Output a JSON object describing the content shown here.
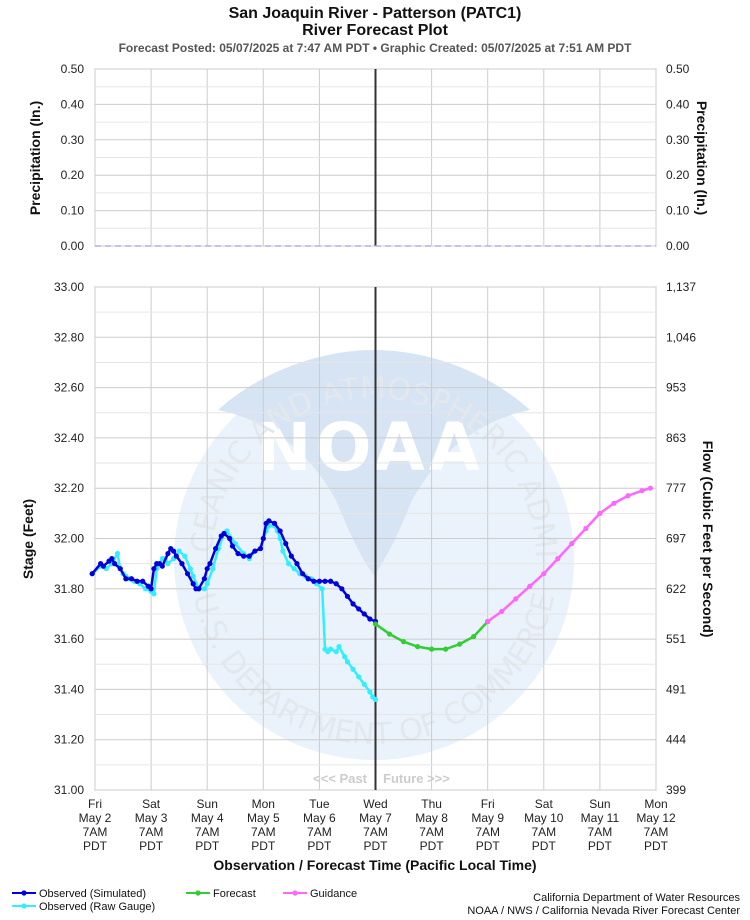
{
  "header": {
    "title_line1": "San Joaquin River - Patterson (PATC1)",
    "title_line2": "River Forecast Plot",
    "subtitle": "Forecast Posted: 05/07/2025 at 7:47 AM PDT  •  Graphic Created: 05/07/2025 at 7:51 AM PDT"
  },
  "watermark": {
    "logo_text": "NOAA",
    "ring_top": "NATIONAL OCEANIC AND ATMOSPHERIC ADMINISTRATION",
    "ring_bottom": "U.S. DEPARTMENT OF COMMERCE",
    "colors": {
      "disc": "#eaf2fb",
      "band": "#d6e4f4",
      "letters": "#ffffff"
    }
  },
  "past_future": {
    "past": "<<< Past",
    "future": "Future >>>"
  },
  "chart_data": [
    {
      "id": "precipitation",
      "type": "line",
      "ylabel_left": "Precipitation (In.)",
      "ylabel_right": "Precipitation (In.)",
      "ylim": [
        0,
        0.5
      ],
      "yticks": [
        "0.50",
        "0.40",
        "0.30",
        "0.20",
        "0.10",
        "0.00"
      ],
      "yticks_right": [
        "0.50",
        "0.40",
        "0.30",
        "0.20",
        "0.10",
        "0.00"
      ],
      "series": [
        {
          "values_note": "",
          "color": "#b0b0f0",
          "x": [
            0,
            10
          ],
          "y": [
            0,
            0
          ],
          "style": "dashed"
        }
      ],
      "grid": true
    },
    {
      "id": "stage",
      "type": "line",
      "ylabel_left": "Stage (Feet)",
      "ylabel_right": "Flow (Cubic Feet per Second)",
      "xlabel": "Observation / Forecast Time (Pacific Local Time)",
      "ylim": [
        31.0,
        33.0
      ],
      "yticks": [
        "33.00",
        "32.80",
        "32.60",
        "32.40",
        "32.20",
        "32.00",
        "31.80",
        "31.60",
        "31.40",
        "31.20",
        "31.00"
      ],
      "yticks_right": [
        "1,137",
        "1,046",
        "953",
        "863",
        "777",
        "697",
        "622",
        "551",
        "491",
        "444",
        "399"
      ],
      "x_ticks": [
        {
          "day": "Fri",
          "date": "May 2",
          "time": "7AM",
          "tz": "PDT"
        },
        {
          "day": "Sat",
          "date": "May 3",
          "time": "7AM",
          "tz": "PDT"
        },
        {
          "day": "Sun",
          "date": "May 4",
          "time": "7AM",
          "tz": "PDT"
        },
        {
          "day": "Mon",
          "date": "May 5",
          "time": "7AM",
          "tz": "PDT"
        },
        {
          "day": "Tue",
          "date": "May 6",
          "time": "7AM",
          "tz": "PDT"
        },
        {
          "day": "Wed",
          "date": "May 7",
          "time": "7AM",
          "tz": "PDT"
        },
        {
          "day": "Thu",
          "date": "May 8",
          "time": "7AM",
          "tz": "PDT"
        },
        {
          "day": "Fri",
          "date": "May 9",
          "time": "7AM",
          "tz": "PDT"
        },
        {
          "day": "Sat",
          "date": "May 10",
          "time": "7AM",
          "tz": "PDT"
        },
        {
          "day": "Sun",
          "date": "May 11",
          "time": "7AM",
          "tz": "PDT"
        },
        {
          "day": "Mon",
          "date": "May 12",
          "time": "7AM",
          "tz": "PDT"
        }
      ],
      "xlim_days": [
        0,
        10
      ],
      "now_day": 5,
      "grid": true,
      "series": [
        {
          "name": "Observed (Raw Gauge)",
          "color": "#33eeff",
          "x": [
            -0.05,
            0.1,
            0.2,
            0.3,
            0.4,
            0.45,
            0.5,
            0.55,
            0.6,
            0.7,
            0.8,
            0.9,
            1.0,
            1.05,
            1.1,
            1.2,
            1.25,
            1.3,
            1.4,
            1.5,
            1.6,
            1.7,
            1.75,
            1.85,
            1.95,
            2.0,
            2.1,
            2.2,
            2.3,
            2.35,
            2.5,
            2.65,
            2.75,
            2.85,
            2.95,
            3.05,
            3.1,
            3.2,
            3.25,
            3.3,
            3.35,
            3.45,
            3.55,
            3.65,
            3.75,
            3.85,
            3.95,
            4.05,
            4.1,
            4.15,
            4.2,
            4.3,
            4.35,
            4.45,
            4.5,
            4.6,
            4.7,
            4.8,
            4.9,
            4.95,
            5.0
          ],
          "y": [
            31.86,
            31.89,
            31.88,
            31.9,
            31.94,
            31.88,
            31.86,
            31.85,
            31.84,
            31.83,
            31.82,
            31.8,
            31.79,
            31.78,
            31.88,
            31.92,
            31.92,
            31.9,
            31.92,
            31.95,
            31.93,
            31.88,
            31.85,
            31.8,
            31.8,
            31.82,
            31.88,
            31.96,
            32.02,
            32.03,
            31.98,
            31.94,
            31.92,
            31.95,
            31.96,
            32.03,
            32.05,
            32.05,
            32.03,
            32.0,
            31.95,
            31.9,
            31.88,
            31.86,
            31.85,
            31.84,
            31.82,
            31.8,
            31.56,
            31.55,
            31.56,
            31.55,
            31.57,
            31.53,
            31.51,
            31.48,
            31.45,
            31.42,
            31.39,
            31.37,
            31.36
          ]
        },
        {
          "name": "Observed (Simulated)",
          "color": "#0000dd",
          "x": [
            -0.05,
            0.1,
            0.15,
            0.25,
            0.3,
            0.35,
            0.45,
            0.55,
            0.65,
            0.75,
            0.85,
            0.95,
            1.0,
            1.05,
            1.1,
            1.15,
            1.2,
            1.3,
            1.35,
            1.4,
            1.45,
            1.55,
            1.65,
            1.75,
            1.8,
            1.85,
            1.95,
            2.0,
            2.05,
            2.15,
            2.25,
            2.3,
            2.4,
            2.45,
            2.55,
            2.65,
            2.75,
            2.85,
            2.95,
            3.0,
            3.05,
            3.1,
            3.2,
            3.3,
            3.4,
            3.5,
            3.6,
            3.7,
            3.8,
            3.9,
            4.0,
            4.1,
            4.2,
            4.3,
            4.4,
            4.5,
            4.6,
            4.7,
            4.8,
            4.9,
            5.0
          ],
          "y": [
            31.86,
            31.9,
            31.89,
            31.91,
            31.92,
            31.9,
            31.88,
            31.84,
            31.84,
            31.83,
            31.83,
            31.81,
            31.8,
            31.88,
            31.9,
            31.9,
            31.89,
            31.94,
            31.96,
            31.95,
            31.93,
            31.9,
            31.86,
            31.82,
            31.8,
            31.8,
            31.84,
            31.88,
            31.9,
            31.96,
            32.01,
            32.02,
            32.0,
            31.97,
            31.94,
            31.93,
            31.93,
            31.95,
            31.96,
            32.0,
            32.06,
            32.07,
            32.06,
            32.03,
            31.98,
            31.93,
            31.9,
            31.86,
            31.84,
            31.83,
            31.83,
            31.83,
            31.83,
            31.82,
            31.8,
            31.77,
            31.74,
            31.72,
            31.7,
            31.68,
            31.67
          ]
        },
        {
          "name": "Forecast",
          "color": "#33cc33",
          "x": [
            5.0,
            5.25,
            5.5,
            5.75,
            6.0,
            6.25,
            6.5,
            6.75,
            7.0
          ],
          "y": [
            31.66,
            31.62,
            31.59,
            31.57,
            31.56,
            31.56,
            31.58,
            31.61,
            31.67
          ]
        },
        {
          "name": "Guidance",
          "color": "#ff66ff",
          "x": [
            7.0,
            7.25,
            7.5,
            7.75,
            8.0,
            8.25,
            8.5,
            8.75,
            9.0,
            9.25,
            9.5,
            9.75,
            9.9
          ],
          "y": [
            31.67,
            31.71,
            31.76,
            31.81,
            31.86,
            31.92,
            31.98,
            32.04,
            32.1,
            32.14,
            32.17,
            32.19,
            32.2
          ]
        }
      ]
    }
  ],
  "legend": [
    {
      "label": "Observed (Simulated)",
      "color": "#0000dd"
    },
    {
      "label": "Observed (Raw Gauge)",
      "color": "#33eeff"
    },
    {
      "label": "Forecast",
      "color": "#33cc33"
    },
    {
      "label": "Guidance",
      "color": "#ff66ff"
    }
  ],
  "credits": {
    "line1": "California Department of Water Resources",
    "line2": "NOAA / NWS / California Nevada River Forecast Center"
  }
}
